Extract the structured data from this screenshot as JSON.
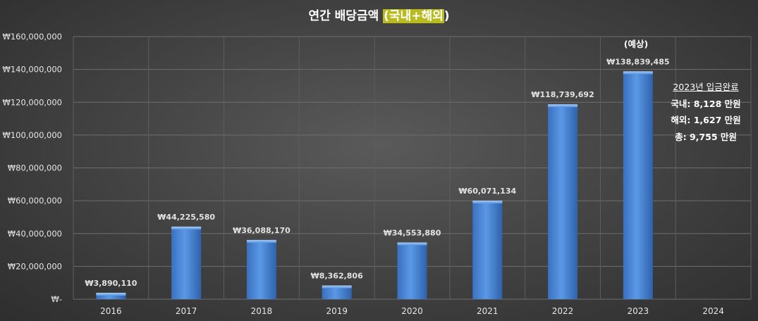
{
  "chart_data": {
    "type": "bar",
    "title_main": "연간 배당금액 ",
    "title_highlight": "(국내+해외",
    "title_tail": ")",
    "categories": [
      "2016",
      "2017",
      "2018",
      "2019",
      "2020",
      "2021",
      "2022",
      "2023",
      "2024"
    ],
    "values": [
      3890110,
      44225580,
      36088170,
      8362806,
      34553880,
      60071134,
      118739692,
      138839485,
      null
    ],
    "data_labels": [
      "₩3,890,110",
      "₩44,225,580",
      "₩36,088,170",
      "₩8,362,806",
      "₩34,553,880",
      "₩60,071,134",
      "₩118,739,692",
      "₩138,839,485",
      ""
    ],
    "ylim": [
      0,
      160000000
    ],
    "ytick_values": [
      0,
      20000000,
      40000000,
      60000000,
      80000000,
      100000000,
      120000000,
      140000000,
      160000000
    ],
    "ytick_labels": [
      "₩-",
      "₩20,000,000",
      "₩40,000,000",
      "₩60,000,000",
      "₩80,000,000",
      "₩100,000,000",
      "₩120,000,000",
      "₩140,000,000",
      "₩160,000,000"
    ],
    "grid": true,
    "bar_color": "#4a86d8",
    "annotations": {
      "projection": "(예상)",
      "summary_title": "2023년 입금완료",
      "summary_lines": [
        "국내: 8,128 만원",
        "해외: 1,627 만원",
        "총: 9,755 만원"
      ]
    }
  }
}
